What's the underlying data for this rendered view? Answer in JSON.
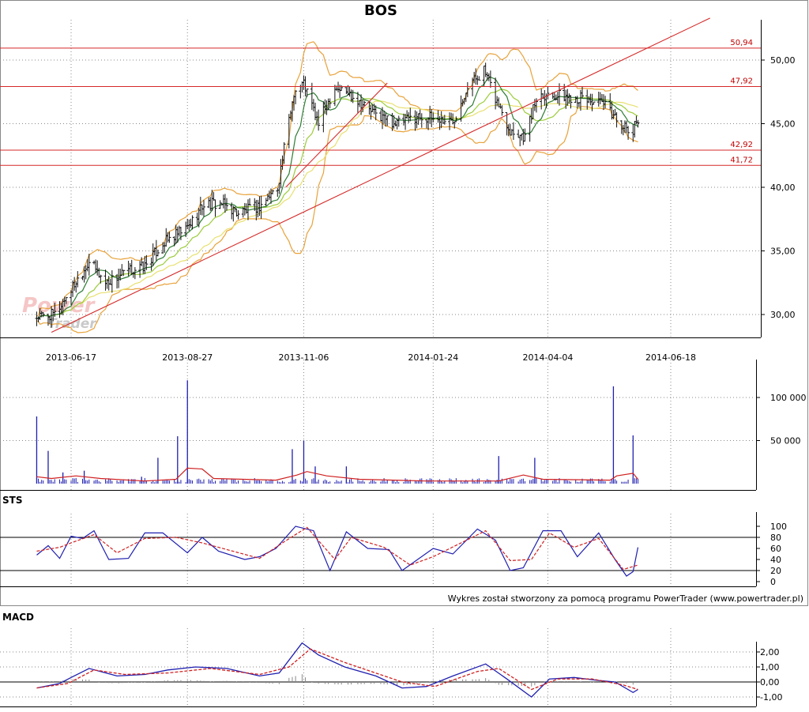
{
  "chart_data": [
    {
      "type": "ohlc",
      "title": "BOS",
      "y_ticks": [
        "50,00",
        "45,00",
        "40,00",
        "35,00",
        "30,00"
      ],
      "y_tick_values": [
        50,
        45,
        40,
        35,
        30
      ],
      "x_tick_labels": [
        "2013-06-17",
        "2013-08-27",
        "2013-11-06",
        "2014-01-24",
        "2014-04-04",
        "2014-06-18"
      ],
      "x_range": [
        "2013-05-27",
        "2014-07-22"
      ],
      "ylim": [
        28.2,
        53.2
      ],
      "grid": true,
      "horizontal_levels": [
        {
          "label": "50,94",
          "value": 50.94
        },
        {
          "label": "47,92",
          "value": 47.92
        },
        {
          "label": "42,92",
          "value": 42.92
        },
        {
          "label": "41,72",
          "value": 41.72
        }
      ],
      "trendlines": [
        {
          "from": [
            "2013-06-05",
            28.6
          ],
          "to": [
            "2014-07-12",
            53.3
          ]
        },
        {
          "from": [
            "2013-10-26",
            40.0
          ],
          "to": [
            "2013-12-27",
            48.2
          ]
        }
      ],
      "close_path": [
        [
          "2013-05-27",
          29.8
        ],
        [
          "2013-06-07",
          30.0
        ],
        [
          "2013-06-17",
          32.0
        ],
        [
          "2013-06-28",
          34.2
        ],
        [
          "2013-07-08",
          32.5
        ],
        [
          "2013-07-22",
          33.4
        ],
        [
          "2013-08-01",
          33.8
        ],
        [
          "2013-08-12",
          35.6
        ],
        [
          "2013-08-27",
          36.8
        ],
        [
          "2013-09-06",
          38.7
        ],
        [
          "2013-09-17",
          38.7
        ],
        [
          "2013-09-27",
          38.0
        ],
        [
          "2013-10-10",
          38.5
        ],
        [
          "2013-10-21",
          40.0
        ],
        [
          "2013-10-31",
          47.5
        ],
        [
          "2013-11-06",
          48.2
        ],
        [
          "2013-11-15",
          45.0
        ],
        [
          "2013-11-25",
          47.9
        ],
        [
          "2013-12-06",
          47.2
        ],
        [
          "2013-12-19",
          45.8
        ],
        [
          "2014-01-02",
          45.0
        ],
        [
          "2014-01-14",
          45.6
        ],
        [
          "2014-01-24",
          45.4
        ],
        [
          "2014-02-05",
          45.2
        ],
        [
          "2014-02-14",
          48.0
        ],
        [
          "2014-02-24",
          49.2
        ],
        [
          "2014-03-03",
          47.0
        ],
        [
          "2014-03-12",
          44.5
        ],
        [
          "2014-03-21",
          44.0
        ],
        [
          "2014-03-29",
          47.4
        ],
        [
          "2014-04-10",
          47.2
        ],
        [
          "2014-04-25",
          47.0
        ],
        [
          "2014-05-08",
          46.5
        ],
        [
          "2014-05-19",
          45.0
        ],
        [
          "2014-05-25",
          44.0
        ],
        [
          "2014-05-29",
          45.5
        ]
      ]
    },
    {
      "type": "bar",
      "panel": "volume",
      "y_ticks": [
        "100 000",
        "50 000"
      ],
      "y_tick_values": [
        100000,
        50000
      ],
      "ylim": [
        0,
        120000
      ],
      "spikes": [
        {
          "date": "2013-05-27",
          "value": 78000
        },
        {
          "date": "2013-06-03",
          "value": 38000
        },
        {
          "date": "2013-06-12",
          "value": 13000
        },
        {
          "date": "2013-06-25",
          "value": 15000
        },
        {
          "date": "2013-07-30",
          "value": 8000
        },
        {
          "date": "2013-08-09",
          "value": 30000
        },
        {
          "date": "2013-08-21",
          "value": 55000
        },
        {
          "date": "2013-08-27",
          "value": 120000
        },
        {
          "date": "2013-10-30",
          "value": 40000
        },
        {
          "date": "2013-11-06",
          "value": 50000
        },
        {
          "date": "2013-11-13",
          "value": 20000
        },
        {
          "date": "2013-12-02",
          "value": 20000
        },
        {
          "date": "2014-03-05",
          "value": 32000
        },
        {
          "date": "2014-03-27",
          "value": 30000
        },
        {
          "date": "2014-05-14",
          "value": 113000
        },
        {
          "date": "2014-05-26",
          "value": 56000
        }
      ],
      "average_line": [
        [
          "2013-05-27",
          8000
        ],
        [
          "2013-06-05",
          6000
        ],
        [
          "2013-06-20",
          9000
        ],
        [
          "2013-07-05",
          6000
        ],
        [
          "2013-08-01",
          3000
        ],
        [
          "2013-08-20",
          5000
        ],
        [
          "2013-08-27",
          18000
        ],
        [
          "2013-09-05",
          17000
        ],
        [
          "2013-09-12",
          6000
        ],
        [
          "2013-10-20",
          4000
        ],
        [
          "2013-11-02",
          10000
        ],
        [
          "2013-11-08",
          14000
        ],
        [
          "2013-11-20",
          9000
        ],
        [
          "2013-12-10",
          5000
        ],
        [
          "2014-01-20",
          3000
        ],
        [
          "2014-03-05",
          3000
        ],
        [
          "2014-03-20",
          10000
        ],
        [
          "2014-04-01",
          5000
        ],
        [
          "2014-05-12",
          4000
        ],
        [
          "2014-05-16",
          9000
        ],
        [
          "2014-05-26",
          12000
        ],
        [
          "2014-05-29",
          5000
        ]
      ]
    },
    {
      "type": "line",
      "title": "STS",
      "y_ticks": [
        "100",
        "80",
        "60",
        "40",
        "20",
        "0"
      ],
      "y_tick_values": [
        100,
        80,
        60,
        40,
        20,
        0
      ],
      "ylim": [
        0,
        100
      ],
      "reference_lines": [
        80,
        20
      ],
      "series": [
        {
          "color": "#1f1fb0",
          "points": [
            [
              "2013-05-27",
              48
            ],
            [
              "2013-06-03",
              65
            ],
            [
              "2013-06-10",
              42
            ],
            [
              "2013-06-17",
              82
            ],
            [
              "2013-06-24",
              78
            ],
            [
              "2013-07-01",
              92
            ],
            [
              "2013-07-10",
              40
            ],
            [
              "2013-07-22",
              42
            ],
            [
              "2013-08-01",
              88
            ],
            [
              "2013-08-12",
              88
            ],
            [
              "2013-08-27",
              52
            ],
            [
              "2013-09-05",
              80
            ],
            [
              "2013-09-15",
              55
            ],
            [
              "2013-10-01",
              40
            ],
            [
              "2013-10-10",
              45
            ],
            [
              "2013-10-20",
              60
            ],
            [
              "2013-11-01",
              100
            ],
            [
              "2013-11-12",
              92
            ],
            [
              "2013-11-22",
              20
            ],
            [
              "2013-12-02",
              90
            ],
            [
              "2013-12-15",
              60
            ],
            [
              "2013-12-28",
              58
            ],
            [
              "2014-01-05",
              20
            ],
            [
              "2014-01-24",
              60
            ],
            [
              "2014-02-05",
              50
            ],
            [
              "2014-02-20",
              95
            ],
            [
              "2014-03-03",
              75
            ],
            [
              "2014-03-12",
              20
            ],
            [
              "2014-03-20",
              25
            ],
            [
              "2014-04-01",
              92
            ],
            [
              "2014-04-12",
              92
            ],
            [
              "2014-04-22",
              45
            ],
            [
              "2014-05-05",
              88
            ],
            [
              "2014-05-15",
              40
            ],
            [
              "2014-05-22",
              10
            ],
            [
              "2014-05-26",
              18
            ],
            [
              "2014-05-29",
              62
            ]
          ]
        },
        {
          "color": "#d02020",
          "dashed": true,
          "points": [
            [
              "2013-05-27",
              55
            ],
            [
              "2013-06-10",
              62
            ],
            [
              "2013-06-17",
              70
            ],
            [
              "2013-07-01",
              85
            ],
            [
              "2013-07-15",
              52
            ],
            [
              "2013-08-01",
              78
            ],
            [
              "2013-08-20",
              80
            ],
            [
              "2013-09-05",
              70
            ],
            [
              "2013-09-20",
              58
            ],
            [
              "2013-10-10",
              42
            ],
            [
              "2013-10-25",
              72
            ],
            [
              "2013-11-08",
              98
            ],
            [
              "2013-11-25",
              40
            ],
            [
              "2013-12-05",
              80
            ],
            [
              "2013-12-25",
              62
            ],
            [
              "2014-01-10",
              30
            ],
            [
              "2014-01-24",
              45
            ],
            [
              "2014-02-10",
              70
            ],
            [
              "2014-02-25",
              92
            ],
            [
              "2014-03-12",
              38
            ],
            [
              "2014-03-25",
              40
            ],
            [
              "2014-04-05",
              88
            ],
            [
              "2014-04-20",
              62
            ],
            [
              "2014-05-05",
              78
            ],
            [
              "2014-05-20",
              22
            ],
            [
              "2014-05-29",
              30
            ]
          ]
        }
      ]
    },
    {
      "type": "line",
      "title": "MACD",
      "y_ticks": [
        "2,00",
        "1,00",
        "0,00",
        "-1,00"
      ],
      "y_tick_values": [
        2,
        1,
        0,
        -1
      ],
      "ylim": [
        -1.5,
        2.9
      ],
      "series": [
        {
          "color": "#1f1fb0",
          "points": [
            [
              "2013-05-27",
              -0.4
            ],
            [
              "2013-06-10",
              -0.1
            ],
            [
              "2013-06-17",
              0.3
            ],
            [
              "2013-06-28",
              0.9
            ],
            [
              "2013-07-15",
              0.4
            ],
            [
              "2013-08-01",
              0.5
            ],
            [
              "2013-08-15",
              0.8
            ],
            [
              "2013-09-01",
              1.0
            ],
            [
              "2013-09-20",
              0.9
            ],
            [
              "2013-10-10",
              0.4
            ],
            [
              "2013-10-22",
              0.6
            ],
            [
              "2013-11-05",
              2.6
            ],
            [
              "2013-11-15",
              1.8
            ],
            [
              "2013-12-01",
              1.0
            ],
            [
              "2013-12-20",
              0.4
            ],
            [
              "2014-01-05",
              -0.4
            ],
            [
              "2014-01-20",
              -0.3
            ],
            [
              "2014-02-05",
              0.4
            ],
            [
              "2014-02-25",
              1.2
            ],
            [
              "2014-03-10",
              0.2
            ],
            [
              "2014-03-25",
              -1.0
            ],
            [
              "2014-04-05",
              0.2
            ],
            [
              "2014-04-20",
              0.3
            ],
            [
              "2014-05-05",
              0.1
            ],
            [
              "2014-05-15",
              0.0
            ],
            [
              "2014-05-26",
              -0.7
            ],
            [
              "2014-05-29",
              -0.5
            ]
          ]
        },
        {
          "color": "#d02020",
          "dashed": true,
          "points": [
            [
              "2013-05-27",
              -0.4
            ],
            [
              "2013-06-15",
              -0.1
            ],
            [
              "2013-07-01",
              0.8
            ],
            [
              "2013-07-20",
              0.5
            ],
            [
              "2013-08-15",
              0.6
            ],
            [
              "2013-09-10",
              0.9
            ],
            [
              "2013-10-10",
              0.5
            ],
            [
              "2013-10-28",
              1.0
            ],
            [
              "2013-11-10",
              2.2
            ],
            [
              "2013-12-01",
              1.3
            ],
            [
              "2014-01-05",
              0.0
            ],
            [
              "2014-01-25",
              -0.3
            ],
            [
              "2014-02-20",
              0.7
            ],
            [
              "2014-03-05",
              0.9
            ],
            [
              "2014-03-25",
              -0.5
            ],
            [
              "2014-04-10",
              0.2
            ],
            [
              "2014-05-01",
              0.2
            ],
            [
              "2014-05-20",
              -0.2
            ],
            [
              "2014-05-29",
              -0.5
            ]
          ]
        }
      ]
    }
  ],
  "labels": {
    "main_title": "BOS",
    "sts_title": "STS",
    "macd_title": "MACD",
    "watermark_line1": "Power",
    "watermark_line2": "Trader",
    "credit": "Wykres został stworzony za pomocą programu PowerTrader (www.powertrader.pl)"
  },
  "colors": {
    "candles": "#111111",
    "bollinger": "#e8a23a",
    "ma_short": "#2e7d32",
    "ma_mid": "#9ccc3a",
    "ma_long": "#e8e070",
    "levels": "#d62828",
    "volume_bars": "#1f1fb0",
    "volume_avg": "#d02020",
    "sts_k": "#1f1fb0",
    "sts_d": "#d02020",
    "macd_line": "#1f1fb0",
    "macd_signal": "#d02020",
    "macd_hist": "#888888"
  }
}
